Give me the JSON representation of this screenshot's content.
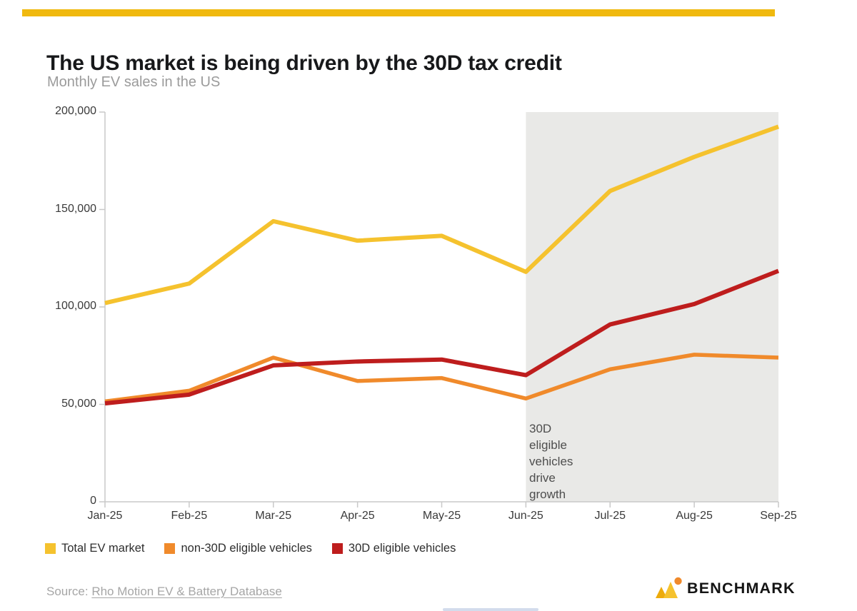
{
  "header": {
    "title": "The US market is being driven by the 30D tax credit",
    "subtitle": "Monthly EV sales in the US"
  },
  "chart_data": {
    "type": "line",
    "categories": [
      "Jan-25",
      "Feb-25",
      "Mar-25",
      "Apr-25",
      "May-25",
      "Jun-25",
      "Jul-25",
      "Aug-25",
      "Sep-25"
    ],
    "series": [
      {
        "name": "Total EV market",
        "color": "#F5C22E",
        "values": [
          102000,
          112000,
          144000,
          134000,
          136500,
          118000,
          159500,
          177000,
          192500
        ]
      },
      {
        "name": "non-30D eligible vehicles",
        "color": "#F08A2B",
        "values": [
          51500,
          57000,
          74000,
          62000,
          63500,
          53000,
          68000,
          75500,
          74000
        ]
      },
      {
        "name": "30D eligible vehicles",
        "color": "#BE1D1D",
        "values": [
          50500,
          55000,
          70000,
          72000,
          73000,
          65000,
          91000,
          101500,
          118500
        ]
      }
    ],
    "ylim": [
      0,
      200000
    ],
    "yticks": [
      0,
      50000,
      100000,
      150000,
      200000
    ],
    "ytick_labels": [
      "0",
      "50,000",
      "100,000",
      "150,000",
      "200,000"
    ],
    "grid": false,
    "legend_position": "bottom",
    "shaded_region": {
      "from": "Jun-25",
      "to": "Sep-25",
      "color": "#E9E9E7",
      "label_lines": [
        "30D",
        "eligible",
        "vehicles",
        "drive",
        "growth"
      ]
    }
  },
  "footer": {
    "source_prefix": "Source: ",
    "source_link_text": "Rho Motion EV & Battery Database",
    "brand": "BENCHMARK"
  },
  "theme": {
    "top_bar_color": "#F0B90F",
    "axis_color": "#C9C9C9",
    "tick_label_color": "#3A3A3A",
    "brand_yellow": "#EDAB0B",
    "brand_orange": "#F08A2B"
  }
}
